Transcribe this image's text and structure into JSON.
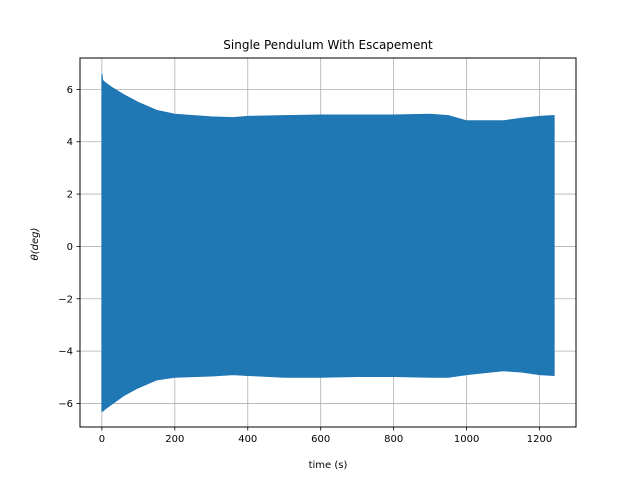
{
  "colors": {
    "series": "#1f77b4",
    "grid": "#b0b0b0",
    "axes": "#000000",
    "background": "#ffffff"
  },
  "chart_data": {
    "type": "area",
    "title": "Single Pendulum With Escapement",
    "xlabel": "time (s)",
    "ylabel_text": "θ(deg)",
    "xlim": [
      -60,
      1300
    ],
    "ylim": [
      -6.9,
      7.2
    ],
    "xticks": [
      0,
      200,
      400,
      600,
      800,
      1000,
      1200
    ],
    "xtick_labels": [
      "0",
      "200",
      "400",
      "600",
      "800",
      "1000",
      "1200"
    ],
    "yticks": [
      -6,
      -4,
      -2,
      0,
      2,
      4,
      6
    ],
    "ytick_labels": [
      "−6",
      "−4",
      "−2",
      "0",
      "2",
      "4",
      "6"
    ],
    "grid": true,
    "legend": "none",
    "series": [
      {
        "description": "oscillation envelope of angle θ over time",
        "x": [
          0,
          2,
          10,
          30,
          60,
          100,
          150,
          200,
          300,
          360,
          400,
          500,
          600,
          700,
          800,
          900,
          950,
          1000,
          1100,
          1150,
          1200,
          1240
        ],
        "upper": [
          6.6,
          6.35,
          6.25,
          6.05,
          5.8,
          5.5,
          5.2,
          5.05,
          4.95,
          4.92,
          4.97,
          5.0,
          5.02,
          5.02,
          5.02,
          5.05,
          5.0,
          4.8,
          4.8,
          4.9,
          4.97,
          5.0
        ],
        "lower": [
          -6.3,
          -6.3,
          -6.2,
          -6.0,
          -5.7,
          -5.4,
          -5.1,
          -5.0,
          -4.95,
          -4.9,
          -4.93,
          -5.0,
          -5.0,
          -4.97,
          -4.97,
          -5.0,
          -5.0,
          -4.9,
          -4.75,
          -4.8,
          -4.9,
          -4.93
        ]
      }
    ]
  }
}
